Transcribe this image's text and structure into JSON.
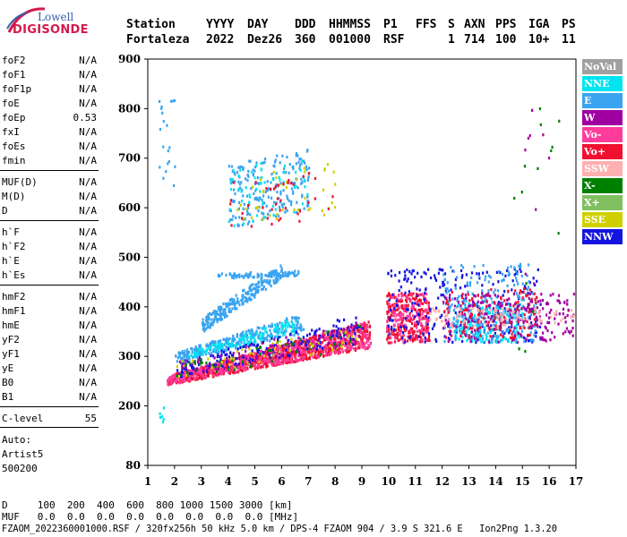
{
  "logo": {
    "line1": "Lowell",
    "line2": "DIGISONDE"
  },
  "header": {
    "labels": [
      "Station",
      "YYYY",
      "DAY",
      "DDD",
      "HHMMSS",
      "P1",
      "FFS",
      "S",
      "AXN",
      "PPS",
      "IGA",
      "PS"
    ],
    "values": [
      "Fortaleza",
      "2022",
      "Dez26",
      "360",
      "001000",
      "RSF",
      "",
      "1",
      "714",
      "100",
      "10+",
      "11"
    ]
  },
  "params_group1": [
    {
      "name": "foF2",
      "value": "N/A"
    },
    {
      "name": "foF1",
      "value": "N/A"
    },
    {
      "name": "foF1p",
      "value": "N/A"
    },
    {
      "name": "foE",
      "value": "N/A"
    },
    {
      "name": "foEp",
      "value": "0.53"
    },
    {
      "name": "fxI",
      "value": "N/A"
    },
    {
      "name": "foEs",
      "value": "N/A"
    },
    {
      "name": "fmin",
      "value": "N/A"
    }
  ],
  "params_group2": [
    {
      "name": "MUF(D)",
      "value": "N/A"
    },
    {
      "name": "M(D)",
      "value": "N/A"
    },
    {
      "name": "D",
      "value": "N/A"
    }
  ],
  "params_group3": [
    {
      "name": "h`F",
      "value": "N/A"
    },
    {
      "name": "h`F2",
      "value": "N/A"
    },
    {
      "name": "h`E",
      "value": "N/A"
    },
    {
      "name": "h`Es",
      "value": "N/A"
    }
  ],
  "params_group4": [
    {
      "name": "hmF2",
      "value": "N/A"
    },
    {
      "name": "hmF1",
      "value": "N/A"
    },
    {
      "name": "hmE",
      "value": "N/A"
    },
    {
      "name": "yF2",
      "value": "N/A"
    },
    {
      "name": "yF1",
      "value": "N/A"
    },
    {
      "name": "yE",
      "value": "N/A"
    },
    {
      "name": "B0",
      "value": "N/A"
    },
    {
      "name": "B1",
      "value": "N/A"
    }
  ],
  "clevel": {
    "name": "C-level",
    "value": "55"
  },
  "auto": [
    "Auto:",
    "Artist5",
    "500200"
  ],
  "footer": {
    "d_line": "D     100  200  400  600  800 1000 1500 3000 [km]",
    "muf_line": "MUF   0.0  0.0  0.0  0.0  0.0  0.0  0.0  0.0 [MHz]",
    "file_line": "FZAOM_2022360001000.RSF / 320fx256h 50 kHz 5.0 km / DPS-4 FZAOM 904 / 3.9 S 321.6 E   Ion2Png 1.3.20"
  },
  "colors": {
    "NoVal": "#a0a0a0",
    "NNE": "#00e5f0",
    "E": "#3aa4f0",
    "W": "#a000a0",
    "Vo-": "#ff3c9c",
    "Vo+": "#f01030",
    "SSW": "#ffb0b0",
    "X-": "#008000",
    "X+": "#80c060",
    "SSE": "#d0d000",
    "NNW": "#1414e0"
  },
  "chart_data": {
    "type": "scatter",
    "xlim": [
      1,
      17
    ],
    "ylim": [
      80,
      900
    ],
    "xticks": [
      1,
      2,
      3,
      4,
      5,
      6,
      7,
      8,
      9,
      10,
      11,
      12,
      13,
      14,
      15,
      16,
      17
    ],
    "yticks": [
      80,
      200,
      300,
      400,
      500,
      600,
      700,
      800,
      900
    ],
    "legend": [
      "NoVal",
      "NNE",
      "E",
      "W",
      "Vo-",
      "Vo+",
      "SSW",
      "X-",
      "X+",
      "SSE",
      "NNW"
    ],
    "legend_position": "right",
    "regions": [
      {
        "series": "Vo+",
        "x": [
          1.7,
          9.3
        ],
        "y0": [
          245,
          320
        ],
        "thick": [
          18,
          55
        ],
        "n": 900
      },
      {
        "series": "Vo-",
        "x": [
          1.7,
          9.3
        ],
        "y0": [
          245,
          320
        ],
        "thick": [
          18,
          55
        ],
        "n": 500
      },
      {
        "series": "E",
        "x": [
          2.0,
          6.8
        ],
        "y0": [
          290,
          350
        ],
        "thick": [
          20,
          40
        ],
        "n": 300
      },
      {
        "series": "NNE",
        "x": [
          2.5,
          6.5
        ],
        "y0": [
          300,
          350
        ],
        "thick": [
          10,
          30
        ],
        "n": 120
      },
      {
        "series": "E",
        "x": [
          3.0,
          6.0
        ],
        "y0": [
          350,
          460
        ],
        "thick": [
          30,
          30
        ],
        "n": 260
      },
      {
        "series": "E",
        "x": [
          3.6,
          6.6
        ],
        "y0": [
          460,
          465
        ],
        "thick": [
          10,
          10
        ],
        "n": 80
      },
      {
        "series": "NNW",
        "x": [
          2.0,
          9.0
        ],
        "y0": [
          260,
          330
        ],
        "thick": [
          30,
          60
        ],
        "n": 180
      },
      {
        "series": "X-",
        "x": [
          2.0,
          9.0
        ],
        "y0": [
          255,
          320
        ],
        "thick": [
          30,
          50
        ],
        "n": 60
      },
      {
        "series": "SSE",
        "x": [
          2.0,
          9.0
        ],
        "y0": [
          260,
          320
        ],
        "thick": [
          30,
          50
        ],
        "n": 50
      },
      {
        "series": "W",
        "x": [
          2.0,
          9.0
        ],
        "y0": [
          260,
          330
        ],
        "thick": [
          30,
          50
        ],
        "n": 80
      },
      {
        "series": "Vo+",
        "x": [
          9.9,
          11.5
        ],
        "y0": [
          330,
          330
        ],
        "thick": [
          100,
          100
        ],
        "n": 260
      },
      {
        "series": "Vo-",
        "x": [
          9.9,
          11.5
        ],
        "y0": [
          330,
          330
        ],
        "thick": [
          100,
          100
        ],
        "n": 120
      },
      {
        "series": "NNW",
        "x": [
          9.9,
          15.7
        ],
        "y0": [
          330,
          330
        ],
        "thick": [
          150,
          150
        ],
        "n": 260
      },
      {
        "series": "NNE",
        "x": [
          12.4,
          15.0
        ],
        "y0": [
          330,
          330
        ],
        "thick": [
          80,
          80
        ],
        "n": 200
      },
      {
        "series": "E",
        "x": [
          12.0,
          15.5
        ],
        "y0": [
          330,
          330
        ],
        "thick": [
          160,
          160
        ],
        "n": 240
      },
      {
        "series": "W",
        "x": [
          12.0,
          16.9
        ],
        "y0": [
          330,
          330
        ],
        "thick": [
          100,
          100
        ],
        "n": 220
      },
      {
        "series": "Vo+",
        "x": [
          12.0,
          15.5
        ],
        "y0": [
          340,
          340
        ],
        "thick": [
          100,
          100
        ],
        "n": 120
      },
      {
        "series": "SSW",
        "x": [
          11.5,
          16.9
        ],
        "y0": [
          360,
          360
        ],
        "thick": [
          40,
          40
        ],
        "n": 90
      },
      {
        "series": "E",
        "x": [
          4.0,
          7.0
        ],
        "y0": [
          560,
          600
        ],
        "thick": [
          130,
          120
        ],
        "n": 200
      },
      {
        "series": "NNE",
        "x": [
          4.0,
          7.0
        ],
        "y0": [
          560,
          600
        ],
        "thick": [
          130,
          100
        ],
        "n": 60
      },
      {
        "series": "SSE",
        "x": [
          4.0,
          8.0
        ],
        "y0": [
          560,
          580
        ],
        "thick": [
          100,
          120
        ],
        "n": 40
      },
      {
        "series": "Vo+",
        "x": [
          4.0,
          8.0
        ],
        "y0": [
          560,
          580
        ],
        "thick": [
          100,
          100
        ],
        "n": 40
      },
      {
        "series": "E",
        "x": [
          1.4,
          2.0
        ],
        "y0": [
          640,
          640
        ],
        "thick": [
          180,
          180
        ],
        "n": 20
      },
      {
        "series": "X-",
        "x": [
          14.6,
          16.5
        ],
        "y0": [
          300,
          300
        ],
        "thick": [
          540,
          540
        ],
        "n": 14
      },
      {
        "series": "W",
        "x": [
          14.7,
          16.0
        ],
        "y0": [
          300,
          300
        ],
        "thick": [
          500,
          500
        ],
        "n": 14
      },
      {
        "series": "NNE",
        "x": [
          1.4,
          1.6
        ],
        "y0": [
          170,
          170
        ],
        "thick": [
          30,
          30
        ],
        "n": 6
      }
    ]
  }
}
